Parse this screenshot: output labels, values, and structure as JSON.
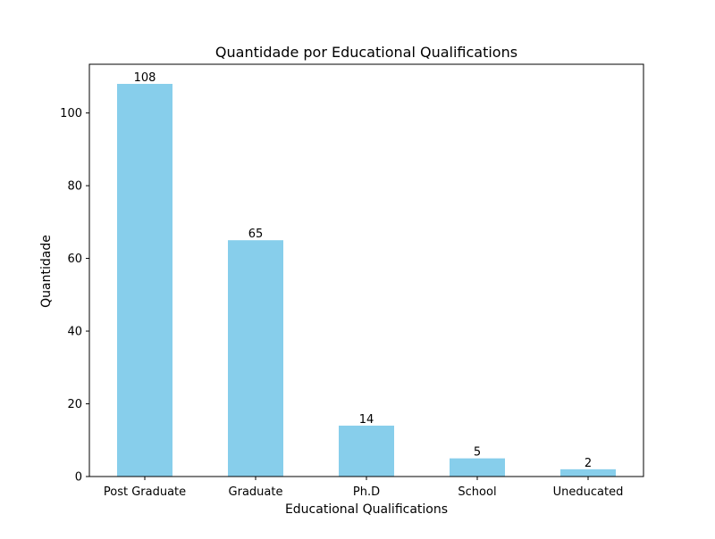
{
  "chart_data": {
    "type": "bar",
    "title": "Quantidade por Educational Qualifications",
    "xlabel": "Educational Qualifications",
    "ylabel": "Quantidade",
    "categories": [
      "Post Graduate",
      "Graduate",
      "Ph.D",
      "School",
      "Uneducated"
    ],
    "values": [
      108,
      65,
      14,
      5,
      2
    ],
    "data_labels": [
      "108",
      "65",
      "14",
      "5",
      "2"
    ],
    "ylim": [
      0,
      113.4
    ],
    "yticks": [
      0,
      20,
      40,
      60,
      80,
      100
    ],
    "ytick_labels": [
      "0",
      "20",
      "40",
      "60",
      "80",
      "100"
    ],
    "bar_color": "#87ceeb",
    "grid": false,
    "legend": "none"
  }
}
